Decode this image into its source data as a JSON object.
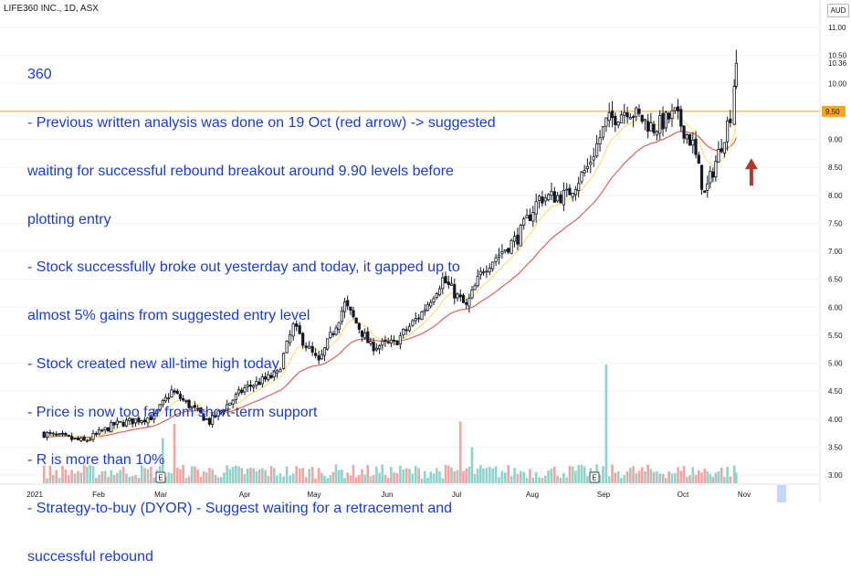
{
  "header": {
    "title": "LIFE360 INC., 1D, ASX"
  },
  "currency_badge": "AUD",
  "annotation": {
    "lines": [
      "360",
      "- Previous written analysis was done on 19 Oct (red arrow) -> suggested",
      "waiting for successful rebound breakout around 9.90 levels before",
      "plotting entry",
      "- Stock successfully broke out yesterday and today, it gapped up to",
      "almost 5% gains from suggested entry level",
      "- Stock created new all-time high today",
      "- Price is now too far from short-term support",
      "- R is more than 10%",
      "- Strategy-to-buy (DYOR) - Suggest waiting for a retracement and",
      "successful rebound"
    ]
  },
  "colors": {
    "up": "#26a69a",
    "down": "#ef5350",
    "ema_fast": "#f5e27a",
    "ema_slow": "#e0605a",
    "hline": "#f5a623",
    "arrow": "#b5362c",
    "note_text": "#1a3ccf",
    "current_price_badge": "#f5a623"
  },
  "chart_data": {
    "type": "candlestick",
    "title": "LIFE360 INC., 1D, ASX",
    "currency": "AUD",
    "y_ticks": [
      "11.00",
      "10.50",
      "10.00",
      "9.50",
      "9.00",
      "8.50",
      "8.00",
      "7.50",
      "7.00",
      "6.50",
      "6.00",
      "5.50",
      "5.00",
      "4.50",
      "4.00",
      "3.50",
      "3.00"
    ],
    "ylim": [
      3.0,
      11.0
    ],
    "x_ticks": [
      "2021",
      "Feb",
      "Mar",
      "Apr",
      "May",
      "Jun",
      "Jul",
      "Aug",
      "Sep",
      "Oct",
      "Nov"
    ],
    "horizontal_line": 9.5,
    "horizontal_line_label": "9.50",
    "last_price_label": "10.36",
    "last_price": 10.36,
    "arrow_marker": {
      "date": "19 Oct",
      "price": 8.4
    },
    "earnings_markers": [
      {
        "label": "E",
        "month": "Mar"
      },
      {
        "label": "E",
        "month": "Sep"
      }
    ],
    "price_path": [
      {
        "date": "2021-01-04",
        "close": 3.75
      },
      {
        "date": "2021-01-25",
        "close": 3.6
      },
      {
        "date": "2021-02-08",
        "close": 3.9
      },
      {
        "date": "2021-02-26",
        "close": 4.05
      },
      {
        "date": "2021-03-05",
        "close": 4.5
      },
      {
        "date": "2021-03-19",
        "close": 3.95
      },
      {
        "date": "2021-04-01",
        "close": 4.55
      },
      {
        "date": "2021-04-15",
        "close": 4.8
      },
      {
        "date": "2021-04-22",
        "close": 5.65
      },
      {
        "date": "2021-05-03",
        "close": 5.0
      },
      {
        "date": "2021-05-14",
        "close": 6.05
      },
      {
        "date": "2021-05-25",
        "close": 5.3
      },
      {
        "date": "2021-06-04",
        "close": 5.35
      },
      {
        "date": "2021-06-16",
        "close": 5.9
      },
      {
        "date": "2021-06-25",
        "close": 6.5
      },
      {
        "date": "2021-07-05",
        "close": 6.0
      },
      {
        "date": "2021-07-12",
        "close": 6.7
      },
      {
        "date": "2021-07-26",
        "close": 7.25
      },
      {
        "date": "2021-08-04",
        "close": 7.95
      },
      {
        "date": "2021-08-16",
        "close": 8.0
      },
      {
        "date": "2021-08-25",
        "close": 8.5
      },
      {
        "date": "2021-09-02",
        "close": 9.3
      },
      {
        "date": "2021-09-10",
        "close": 9.55
      },
      {
        "date": "2021-09-20",
        "close": 9.2
      },
      {
        "date": "2021-09-28",
        "close": 9.45
      },
      {
        "date": "2021-10-06",
        "close": 8.9
      },
      {
        "date": "2021-10-12",
        "close": 8.0
      },
      {
        "date": "2021-10-19",
        "close": 8.75
      },
      {
        "date": "2021-10-25",
        "close": 9.45
      },
      {
        "date": "2021-10-27",
        "close": 10.0
      },
      {
        "date": "2021-10-28",
        "close": 10.36
      }
    ],
    "volume_spikes": [
      {
        "month": "Mar",
        "relative": 0.38
      },
      {
        "month": "Mar",
        "relative": 0.5
      },
      {
        "month": "Jul",
        "relative": 0.52
      },
      {
        "month": "Jul",
        "relative": 0.3
      },
      {
        "month": "Sep",
        "relative": 1.0
      }
    ]
  }
}
